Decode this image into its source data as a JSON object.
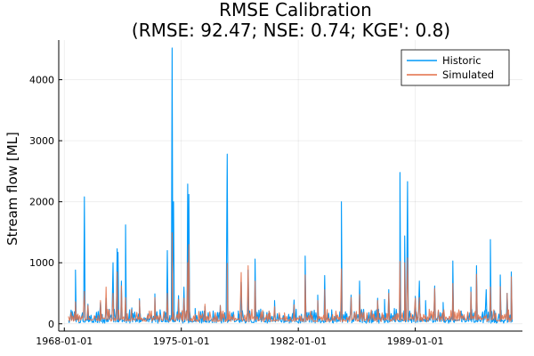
{
  "chart_data": {
    "type": "line",
    "title": "RMSE Calibration",
    "subtitle": "(RMSE: 92.47; NSE: 0.74; KGE': 0.8)",
    "xlabel": "",
    "ylabel": "Stream flow [ML]",
    "x_tick_labels": [
      "1968-01-01",
      "1975-01-01",
      "1982-01-01",
      "1989-01-01"
    ],
    "y_tick_labels": [
      "0",
      "1000",
      "2000",
      "3000",
      "4000"
    ],
    "y_ticks": [
      0,
      1000,
      2000,
      3000,
      4000
    ],
    "ylim": [
      -120,
      4650
    ],
    "xlim": [
      "1967-09-01",
      "1995-06-01"
    ],
    "grid": true,
    "legend_position": "top-right",
    "colors": {
      "historic": "#009AFA",
      "simulated": "#E36F47"
    },
    "series": [
      {
        "name": "Historic",
        "x": [
          "1968-04-01",
          "1968-09-01",
          "1969-02-01",
          "1969-03-15",
          "1969-06-01",
          "1969-11-01",
          "1970-03-01",
          "1970-07-01",
          "1970-12-01",
          "1971-03-01",
          "1971-03-20",
          "1971-06-01",
          "1971-09-01",
          "1972-01-15",
          "1972-07-01",
          "1973-01-01",
          "1973-06-01",
          "1974-01-01",
          "1974-03-01",
          "1974-06-15",
          "1974-07-15",
          "1974-11-01",
          "1975-03-01",
          "1975-05-20",
          "1975-06-15",
          "1975-11-01",
          "1976-06-01",
          "1977-05-01",
          "1977-10-01",
          "1978-06-01",
          "1978-08-01",
          "1979-01-01",
          "1979-06-01",
          "1979-10-01",
          "1980-04-01",
          "1980-08-01",
          "1981-03-01",
          "1981-10-01",
          "1982-06-01",
          "1983-03-01",
          "1983-08-01",
          "1984-01-01",
          "1984-08-01",
          "1985-03-01",
          "1985-09-01",
          "1986-06-01",
          "1986-10-01",
          "1987-03-01",
          "1987-06-01",
          "1987-10-01",
          "1988-02-01",
          "1988-05-15",
          "1988-07-15",
          "1989-01-01",
          "1989-04-01",
          "1989-08-15",
          "1990-03-01",
          "1990-09-01",
          "1991-04-01",
          "1991-10-01",
          "1992-05-01",
          "1992-09-01",
          "1993-04-01",
          "1993-07-01",
          "1993-10-01",
          "1994-02-01",
          "1994-07-01",
          "1994-10-01"
        ],
        "values": [
          50,
          880,
          180,
          2080,
          320,
          120,
          350,
          420,
          1000,
          1230,
          1170,
          700,
          1620,
          260,
          410,
          160,
          490,
          200,
          1200,
          4520,
          2000,
          460,
          600,
          2290,
          2120,
          250,
          280,
          300,
          2780,
          210,
          680,
          880,
          1060,
          240,
          200,
          380,
          120,
          390,
          1110,
          470,
          790,
          230,
          2000,
          470,
          700,
          210,
          420,
          400,
          560,
          250,
          2480,
          1440,
          2330,
          450,
          700,
          380,
          620,
          350,
          1030,
          210,
          600,
          950,
          560,
          1380,
          210,
          800,
          500,
          850
        ]
      },
      {
        "name": "Simulated",
        "x": [
          "1968-04-01",
          "1968-09-01",
          "1969-03-15",
          "1969-06-01",
          "1970-03-01",
          "1970-07-01",
          "1970-12-01",
          "1971-03-01",
          "1971-06-01",
          "1971-09-01",
          "1972-07-01",
          "1973-06-01",
          "1974-03-01",
          "1974-06-15",
          "1974-11-01",
          "1975-03-01",
          "1975-05-20",
          "1975-06-15",
          "1976-06-01",
          "1977-05-01",
          "1977-10-01",
          "1978-08-01",
          "1979-01-01",
          "1979-06-01",
          "1980-04-01",
          "1980-08-01",
          "1981-10-01",
          "1982-06-01",
          "1983-03-01",
          "1983-08-01",
          "1984-08-01",
          "1985-03-01",
          "1985-09-01",
          "1986-10-01",
          "1987-06-01",
          "1988-02-01",
          "1988-05-15",
          "1988-07-15",
          "1989-01-01",
          "1989-04-01",
          "1990-03-01",
          "1991-04-01",
          "1992-05-01",
          "1992-09-01",
          "1993-07-01",
          "1994-02-01",
          "1994-07-01",
          "1994-10-01"
        ],
        "values": [
          120,
          360,
          530,
          300,
          380,
          600,
          500,
          850,
          620,
          430,
          380,
          430,
          500,
          1490,
          400,
          420,
          1000,
          1300,
          320,
          300,
          990,
          840,
          950,
          700,
          210,
          280,
          310,
          800,
          380,
          560,
          900,
          430,
          480,
          380,
          500,
          1020,
          1000,
          1080,
          420,
          430,
          580,
          660,
          520,
          810,
          600,
          610,
          500,
          770
        ]
      }
    ]
  }
}
